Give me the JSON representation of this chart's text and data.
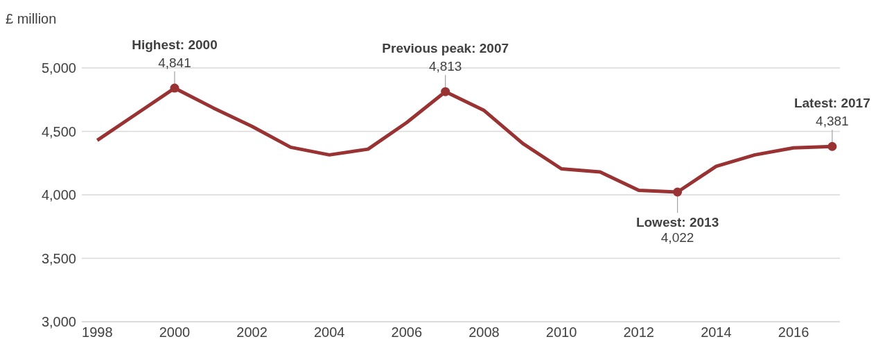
{
  "chart_data": {
    "type": "line",
    "ylabel": "£ million",
    "x": [
      1998,
      1999,
      2000,
      2001,
      2002,
      2003,
      2004,
      2005,
      2006,
      2007,
      2008,
      2009,
      2010,
      2011,
      2012,
      2013,
      2014,
      2015,
      2016,
      2017
    ],
    "series": [
      {
        "color": "#993333",
        "values": [
          4430,
          4635,
          4841,
          4685,
          4540,
          4375,
          4315,
          4360,
          4570,
          4813,
          4665,
          4405,
          4205,
          4180,
          4035,
          4022,
          4225,
          4315,
          4370,
          4381
        ],
        "value_labels": [
          null,
          null,
          "4,841",
          null,
          null,
          null,
          null,
          null,
          null,
          "4,813",
          null,
          null,
          null,
          null,
          null,
          "4,022",
          null,
          null,
          null,
          "4,381"
        ]
      }
    ],
    "annotations": [
      {
        "text": "Highest: 2000",
        "x": 2000,
        "y": 4841
      },
      {
        "text": "Previous peak: 2007",
        "x": 2007,
        "y": 4813
      },
      {
        "text": "Lowest: 2013",
        "x": 2013,
        "y": 4022
      },
      {
        "text": "Latest: 2017",
        "x": 2017,
        "y": 4381
      }
    ],
    "xlim": [
      1997.6,
      2017.2
    ],
    "xticks": [
      1998,
      2000,
      2002,
      2004,
      2006,
      2008,
      2010,
      2012,
      2014,
      2016
    ],
    "ylim": [
      3000,
      5000
    ],
    "yticks": [
      {
        "value": 3000,
        "label": "3,000"
      },
      {
        "value": 3500,
        "label": "3,500"
      },
      {
        "value": 4000,
        "label": "4,000"
      },
      {
        "value": 4500,
        "label": "4,500"
      },
      {
        "value": 5000,
        "label": "5,000"
      }
    ],
    "grid": "y",
    "legend": false
  }
}
